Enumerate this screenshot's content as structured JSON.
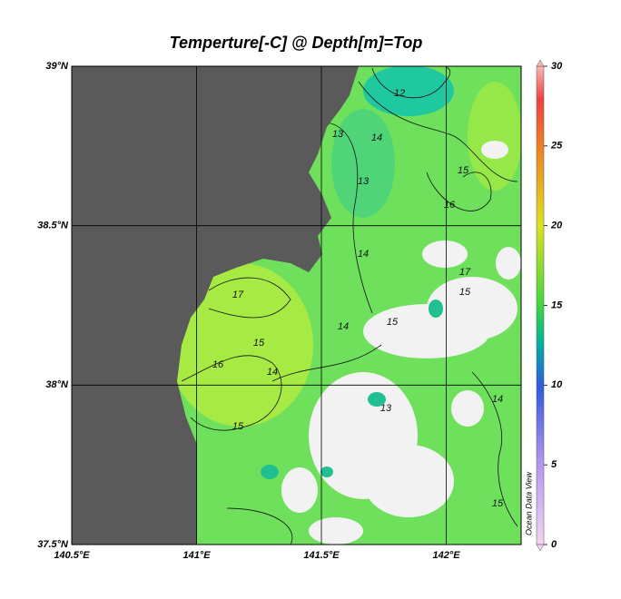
{
  "map": {
    "title": "Temperture[-C] @ Depth[m]=Top",
    "xlim": [
      140.5,
      142.3
    ],
    "ylim": [
      37.5,
      39
    ],
    "xticks": [
      {
        "value": 140.5,
        "label": "140.5°E"
      },
      {
        "value": 141,
        "label": "141°E"
      },
      {
        "value": 141.5,
        "label": "141.5°E"
      },
      {
        "value": 142,
        "label": "142°E"
      }
    ],
    "yticks": [
      {
        "value": 37.5,
        "label": "37.5°N"
      },
      {
        "value": 38,
        "label": "38°N"
      },
      {
        "value": 38.5,
        "label": "38.5°N"
      },
      {
        "value": 39,
        "label": "39°N"
      }
    ],
    "grid": true,
    "colorbar": {
      "lim": [
        0,
        30
      ],
      "ticks": [
        0,
        5,
        10,
        15,
        20,
        25,
        30
      ]
    },
    "contour_labels": [
      "12",
      "13",
      "14",
      "13",
      "14",
      "15",
      "16",
      "17",
      "15",
      "16",
      "14",
      "15",
      "14",
      "15",
      "17",
      "14",
      "15",
      "13",
      "15"
    ],
    "watermark": "Ocean Data View"
  }
}
